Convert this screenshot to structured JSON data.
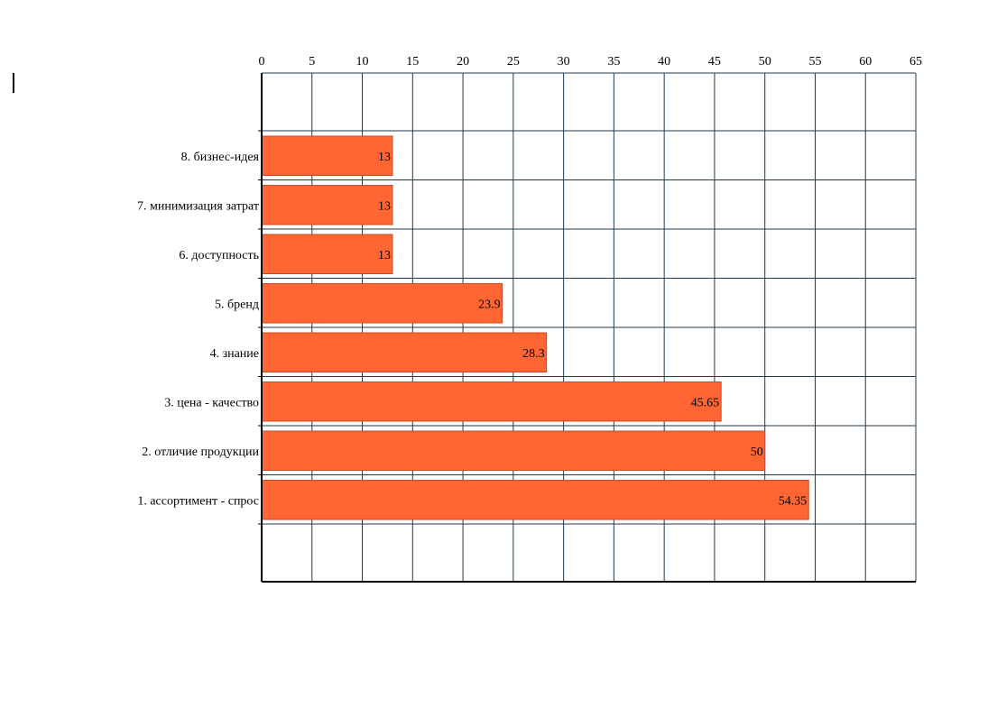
{
  "colors": {
    "bar_fill": "#ff6633",
    "bar_stroke": "#cc4a22",
    "grid": "#1f3a4d",
    "axis": "#000000",
    "background": "#ffffff"
  },
  "chart_data": {
    "type": "bar",
    "orientation": "horizontal",
    "title": "",
    "xlabel": "",
    "ylabel": "",
    "xlim": [
      0,
      65
    ],
    "x_ticks": [
      0,
      5,
      10,
      15,
      20,
      25,
      30,
      35,
      40,
      45,
      50,
      55,
      60,
      65
    ],
    "x_axis_position": "top",
    "grid": true,
    "legend": "none",
    "categories": [
      "8. бизнес-идея",
      "7.  минимизация затрат",
      "6. доступность",
      "5.  бренд",
      "4. знание",
      "3. цена - качество",
      "2.  отличие продукции",
      "1. ассортимент - спрос"
    ],
    "values": [
      13,
      13,
      13,
      23.9,
      28.3,
      45.65,
      50,
      54.35
    ],
    "data_labels": [
      "13",
      "13",
      "13",
      "23.9",
      "28.3",
      "45.65",
      "50",
      "54.35"
    ]
  }
}
